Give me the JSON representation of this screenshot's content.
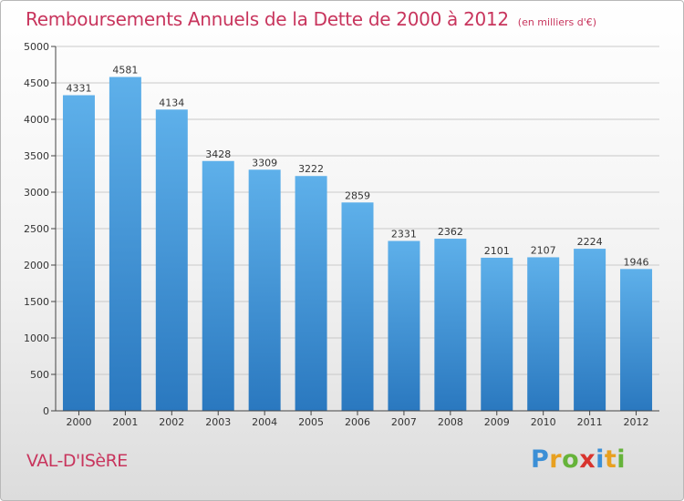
{
  "title": "Remboursements Annuels de la Dette de 2000 à 2012",
  "subtitle": "(en milliers d'€)",
  "commune": "VAL-D'ISèRE",
  "logo": {
    "letters": [
      "P",
      "r",
      "o",
      "x",
      "i",
      "t",
      "i"
    ],
    "colors": [
      "#3b8fd6",
      "#e8a020",
      "#66b33a",
      "#d8342e",
      "#3b8fd6",
      "#e8a020",
      "#66b33a"
    ]
  },
  "colors": {
    "title": "#c8355d",
    "bar_light": "#5eb0ea",
    "bar_dark": "#2a78bf",
    "grid": "#c9c9c9"
  },
  "chart_data": {
    "type": "bar",
    "title": "Remboursements Annuels de la Dette de 2000 à 2012",
    "xlabel": "",
    "ylabel": "",
    "categories": [
      "2000",
      "2001",
      "2002",
      "2003",
      "2004",
      "2005",
      "2006",
      "2007",
      "2008",
      "2009",
      "2010",
      "2011",
      "2012"
    ],
    "values": [
      4331,
      4581,
      4134,
      3428,
      3309,
      3222,
      2859,
      2331,
      2362,
      2101,
      2107,
      2224,
      1946
    ],
    "value_labels": [
      "4331",
      "4581",
      "4134",
      "3428",
      "3309",
      "3222",
      "2859",
      "2331",
      "2362",
      "2101",
      "2107",
      "2224",
      "1946"
    ],
    "ylim": [
      0,
      5000
    ],
    "yticks": [
      0,
      500,
      1000,
      1500,
      2000,
      2500,
      3000,
      3500,
      4000,
      4500,
      5000
    ],
    "ytick_labels": [
      "0",
      "500",
      "1000",
      "1500",
      "2000",
      "2500",
      "3000",
      "3500",
      "4000",
      "4500",
      "5000"
    ],
    "grid": true
  }
}
